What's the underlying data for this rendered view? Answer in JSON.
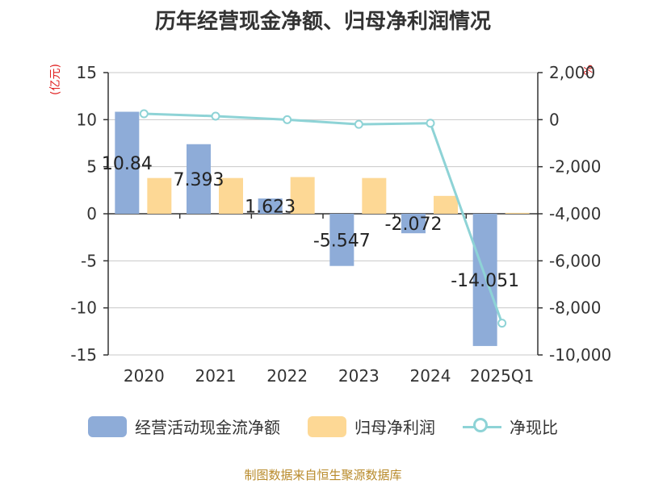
{
  "chart_data": {
    "type": "bar",
    "title": "历年经营现金净额、归母净利润情况",
    "categories": [
      "2020",
      "2021",
      "2022",
      "2023",
      "2024",
      "2025Q1"
    ],
    "y_left_label": "(亿元)",
    "y_right_label": "%",
    "ylim_left": [
      -15,
      15
    ],
    "yticks_left": [
      15,
      10,
      5,
      0,
      -5,
      -10,
      -15
    ],
    "ylim_right": [
      -10000,
      2000
    ],
    "yticks_right": [
      "2,000",
      "0",
      "-2,000",
      "-4,000",
      "-6,000",
      "-8,000",
      "-10,000"
    ],
    "yticks_right_values": [
      2000,
      0,
      -2000,
      -4000,
      -6000,
      -8000,
      -10000
    ],
    "grid": true,
    "legend_position": "bottom",
    "series": [
      {
        "name": "经营活动现金流净额",
        "type": "bar",
        "axis": "left",
        "color": "#8eacd8",
        "values": [
          10.84,
          7.393,
          1.623,
          -5.547,
          -2.072,
          -14.051
        ],
        "labels": [
          "10.84",
          "7.393",
          "1.623",
          "-5.547",
          "-2.072",
          "-14.051"
        ]
      },
      {
        "name": "归母净利润",
        "type": "bar",
        "axis": "left",
        "color": "#fdd895",
        "values": [
          3.8,
          3.8,
          3.9,
          3.8,
          1.9,
          0.1
        ]
      },
      {
        "name": "净现比",
        "type": "line",
        "axis": "right",
        "color": "#8ed3d6",
        "values": [
          250,
          150,
          0,
          -200,
          -150,
          -8650
        ]
      }
    ]
  },
  "source_text": "制图数据来自恒生聚源数据库"
}
